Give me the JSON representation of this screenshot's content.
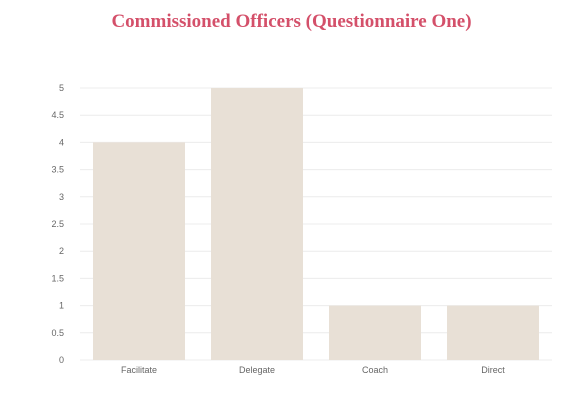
{
  "chart_data": {
    "type": "bar",
    "title": "Commissioned Officers (Questionnaire One)",
    "xlabel": "",
    "ylabel": "",
    "categories": [
      "Facilitate",
      "Delegate",
      "Coach",
      "Direct"
    ],
    "values": [
      4,
      5,
      1,
      1
    ],
    "ylim": [
      0,
      5
    ],
    "yticks": [
      "0",
      "0.5",
      "1",
      "1.5",
      "2",
      "2.5",
      "3",
      "3.5",
      "4",
      "4.5",
      "5"
    ],
    "grid": true,
    "legend": "none"
  },
  "colors": {
    "title": "#d4506a",
    "bar": "#e8e0d6",
    "grid": "#ececec",
    "axis_text": "#666666"
  }
}
